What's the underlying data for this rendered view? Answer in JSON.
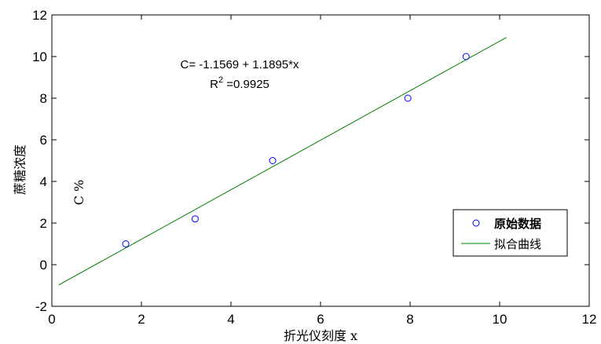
{
  "chart_data": {
    "type": "scatter",
    "xlabel": "折光仪刻度 x",
    "ylabel": "蔗糖浓度",
    "ylabel_unit": "C %",
    "xlim": [
      0,
      12
    ],
    "ylim": [
      -2,
      12
    ],
    "xticks": [
      0,
      2,
      4,
      6,
      8,
      10,
      12
    ],
    "yticks": [
      -2,
      0,
      2,
      4,
      6,
      8,
      10,
      12
    ],
    "grid": false,
    "legend_position": "bottom-right",
    "colors": {
      "points": "#0000ff",
      "fit": "#008000",
      "axes": "#000000"
    },
    "series": [
      {
        "name": "原始数据",
        "kind": "scatter",
        "marker": "circle-open",
        "x": [
          1.65,
          3.2,
          4.93,
          7.95,
          9.25
        ],
        "y": [
          1,
          2.2,
          5,
          8,
          10
        ]
      },
      {
        "name": "拟合曲线",
        "kind": "line",
        "x": [
          0.15,
          10.15
        ],
        "y": [
          -0.9785,
          10.9165
        ]
      }
    ],
    "annotations": {
      "equation": "C= -1.1569 + 1.1895*x",
      "r2_label": "R",
      "r2_exponent": "2",
      "r2_value": " =0.9925"
    }
  }
}
